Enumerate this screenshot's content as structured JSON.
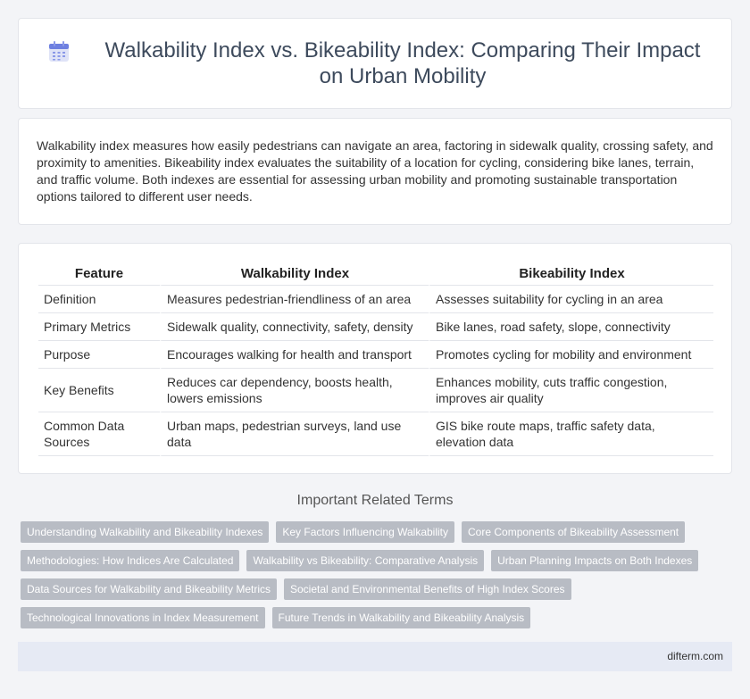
{
  "header": {
    "title": "Walkability Index vs. Bikeability Index: Comparing Their Impact on Urban Mobility",
    "icon": "calendar-icon"
  },
  "intro": {
    "text": "Walkability index measures how easily pedestrians can navigate an area, factoring in sidewalk quality, crossing safety, and proximity to amenities. Bikeability index evaluates the suitability of a location for cycling, considering bike lanes, terrain, and traffic volume. Both indexes are essential for assessing urban mobility and promoting sustainable transportation options tailored to different user needs."
  },
  "table": {
    "headers": [
      "Feature",
      "Walkability Index",
      "Bikeability Index"
    ],
    "rows": [
      [
        "Definition",
        "Measures pedestrian-friendliness of an area",
        "Assesses suitability for cycling in an area"
      ],
      [
        "Primary Metrics",
        "Sidewalk quality, connectivity, safety, density",
        "Bike lanes, road safety, slope, connectivity"
      ],
      [
        "Purpose",
        "Encourages walking for health and transport",
        "Promotes cycling for mobility and environment"
      ],
      [
        "Key Benefits",
        "Reduces car dependency, boosts health, lowers emissions",
        "Enhances mobility, cuts traffic congestion, improves air quality"
      ],
      [
        "Common Data Sources",
        "Urban maps, pedestrian surveys, land use data",
        "GIS bike route maps, traffic safety data, elevation data"
      ]
    ]
  },
  "related": {
    "title": "Important Related Terms",
    "tags": [
      "Understanding Walkability and Bikeability Indexes",
      "Key Factors Influencing Walkability",
      "Core Components of Bikeability Assessment",
      "Methodologies: How Indices Are Calculated",
      "Walkability vs Bikeability: Comparative Analysis",
      "Urban Planning Impacts on Both Indexes",
      "Data Sources for Walkability and Bikeability Metrics",
      "Societal and Environmental Benefits of High Index Scores",
      "Technological Innovations in Index Measurement",
      "Future Trends in Walkability and Bikeability Analysis"
    ]
  },
  "footer": {
    "site": "difterm.com"
  }
}
